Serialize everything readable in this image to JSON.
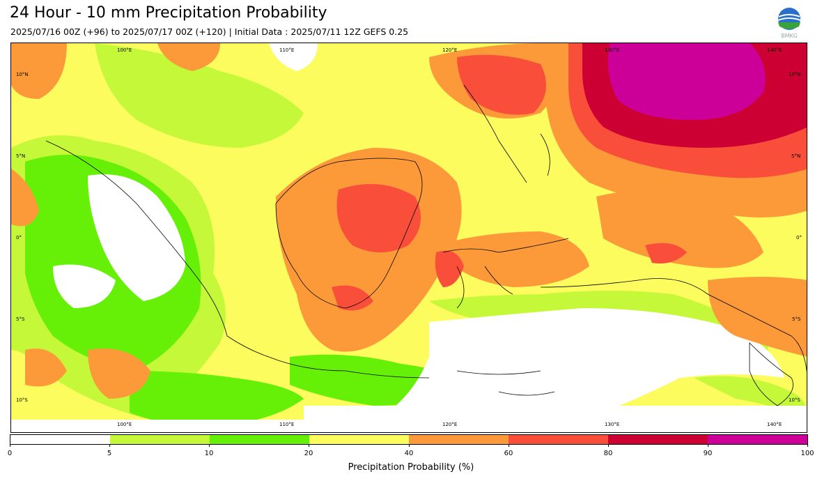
{
  "header": {
    "title": "24 Hour - 10 mm Precipitation Probability",
    "subtitle": "2025/07/16 00Z (+96) to 2025/07/17 00Z (+120) | Initial Data : 2025/07/11 12Z GEFS 0.25",
    "logo_text": "BMKG"
  },
  "map": {
    "lon_labels": [
      "100°E",
      "110°E",
      "120°E",
      "130°E",
      "140°E"
    ],
    "lat_labels": [
      "10°N",
      "5°N",
      "0°",
      "5°S",
      "10°S"
    ]
  },
  "colorbar": {
    "label": "Precipitation Probability (%)",
    "ticks": [
      "0",
      "5",
      "10",
      "20",
      "40",
      "60",
      "80",
      "90",
      "100"
    ],
    "colors": [
      "#ffffff",
      "#c6f83a",
      "#66f007",
      "#fcfc5e",
      "#fc9a3a",
      "#f84e3a",
      "#cc0033",
      "#cc0099"
    ]
  }
}
